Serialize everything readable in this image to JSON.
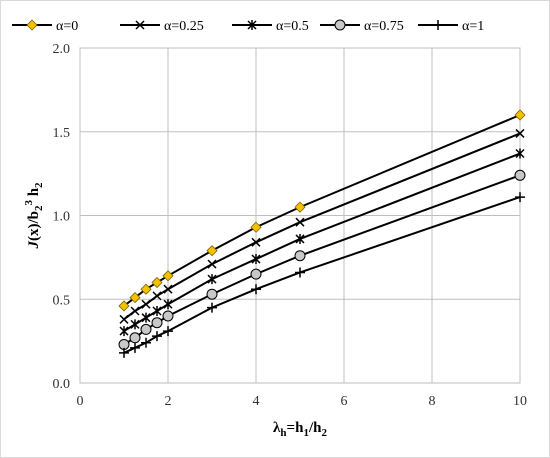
{
  "chart_data": {
    "type": "line",
    "title": "",
    "xlabel": {
      "text": "λh=h1/h2",
      "parts": [
        [
          "λ",
          "n"
        ],
        [
          "h",
          "sub"
        ],
        [
          "=h",
          "n"
        ],
        [
          "1",
          "sub"
        ],
        [
          "/h",
          "n"
        ],
        [
          "2",
          "sub"
        ]
      ]
    },
    "ylabel": {
      "text": "J(x)/b2³ h2",
      "parts": [
        [
          "J",
          "i"
        ],
        [
          "(x)/b",
          "n"
        ],
        [
          "2",
          "sub"
        ],
        [
          "3",
          "sup"
        ],
        [
          " h",
          "n"
        ],
        [
          "2",
          "sub"
        ]
      ]
    },
    "xlim": [
      0,
      10
    ],
    "ylim": [
      0,
      2
    ],
    "x_ticks": [
      "0",
      "2",
      "4",
      "6",
      "8",
      "10"
    ],
    "y_ticks": [
      "0.0",
      "0.5",
      "1.0",
      "1.5",
      "2.0"
    ],
    "grid": true,
    "legend_position": "top",
    "series": [
      {
        "name": "α=0",
        "marker": "diamond",
        "color": "#F2C200",
        "x": [
          1,
          1.25,
          1.5,
          1.75,
          2,
          3,
          4,
          5,
          10
        ],
        "y": [
          0.46,
          0.51,
          0.56,
          0.6,
          0.64,
          0.79,
          0.93,
          1.05,
          1.6
        ]
      },
      {
        "name": "α=0.25",
        "marker": "x",
        "color": "#000000",
        "x": [
          1,
          1.25,
          1.5,
          1.75,
          2,
          3,
          4,
          5,
          10
        ],
        "y": [
          0.38,
          0.43,
          0.47,
          0.52,
          0.56,
          0.71,
          0.84,
          0.96,
          1.49
        ]
      },
      {
        "name": "α=0.5",
        "marker": "star",
        "color": "#000000",
        "x": [
          1,
          1.25,
          1.5,
          1.75,
          2,
          3,
          4,
          5,
          10
        ],
        "y": [
          0.31,
          0.35,
          0.39,
          0.43,
          0.47,
          0.62,
          0.74,
          0.86,
          1.37
        ]
      },
      {
        "name": "α=0.75",
        "marker": "circle",
        "color": "#C8C8C8",
        "x": [
          1,
          1.25,
          1.5,
          1.75,
          2,
          3,
          4,
          5,
          10
        ],
        "y": [
          0.23,
          0.27,
          0.32,
          0.36,
          0.4,
          0.53,
          0.65,
          0.76,
          1.24
        ]
      },
      {
        "name": "α=1",
        "marker": "plus",
        "color": "#000000",
        "x": [
          1,
          1.25,
          1.5,
          1.75,
          2,
          3,
          4,
          5,
          10
        ],
        "y": [
          0.18,
          0.21,
          0.24,
          0.28,
          0.31,
          0.45,
          0.56,
          0.66,
          1.11
        ]
      }
    ]
  }
}
